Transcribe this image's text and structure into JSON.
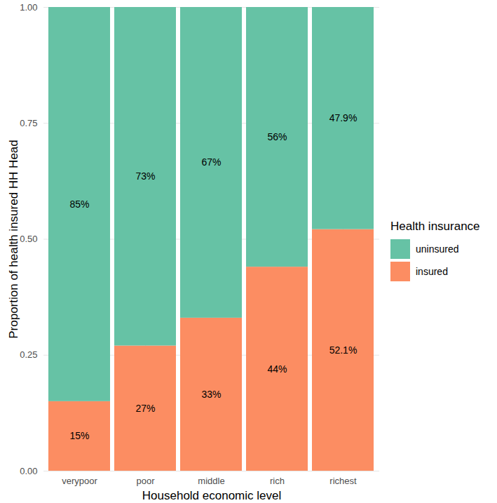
{
  "chart_data": {
    "type": "bar",
    "stacked": true,
    "data_labels": true,
    "grid": true,
    "legend": "right",
    "legend_title": "Health insurance",
    "x_label": "Household economic level",
    "y_label": "Proportion of health insured HH Head",
    "categories": [
      "verypoor",
      "poor",
      "middle",
      "rich",
      "richest"
    ],
    "ylim": [
      0,
      1
    ],
    "yticks": [
      {
        "value": 0,
        "label": "0.00"
      },
      {
        "value": 0.25,
        "label": "0.25"
      },
      {
        "value": 0.5,
        "label": "0.50"
      },
      {
        "value": 0.75,
        "label": "0.75"
      },
      {
        "value": 1,
        "label": "1.00"
      }
    ],
    "series": [
      {
        "name": "uninsured",
        "color": "#66c2a5",
        "values": [
          0.85,
          0.73,
          0.67,
          0.56,
          0.479
        ],
        "value_labels": [
          "85%",
          "73%",
          "67%",
          "56%",
          "47.9%"
        ]
      },
      {
        "name": "insured",
        "color": "#fc8d62",
        "values": [
          0.15,
          0.27,
          0.33,
          0.44,
          0.521
        ],
        "value_labels": [
          "15%",
          "27%",
          "33%",
          "44%",
          "52.1%"
        ]
      }
    ]
  }
}
